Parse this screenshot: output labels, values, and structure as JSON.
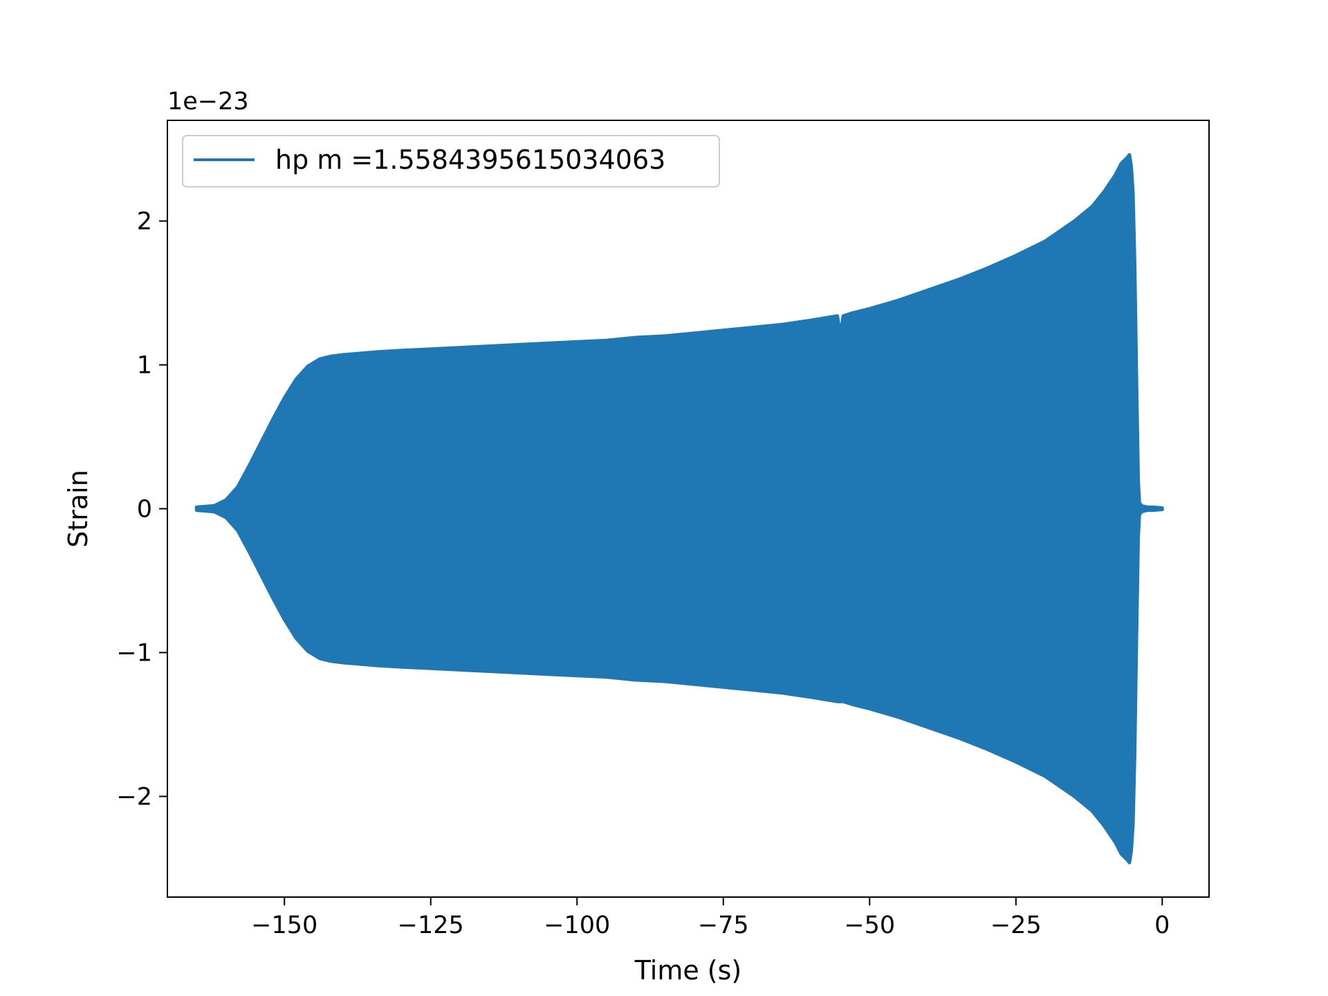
{
  "chart_data": {
    "type": "area",
    "title": "",
    "xlabel": "Time (s)",
    "ylabel": "Strain",
    "offset_text": "1e−23",
    "xlim": [
      -170,
      8
    ],
    "ylim": [
      -2.7,
      2.7
    ],
    "xticks": [
      -150,
      -125,
      -100,
      -75,
      -50,
      -25,
      0
    ],
    "xtick_labels": [
      "−150",
      "−125",
      "−100",
      "−75",
      "−50",
      "−25",
      "0"
    ],
    "yticks": [
      -2,
      -1,
      0,
      1,
      2
    ],
    "ytick_labels": [
      "−2",
      "−1",
      "0",
      "1",
      "2"
    ],
    "grid": false,
    "legend_position": "top-left",
    "series": [
      {
        "name": "hp m =1.5584395615034063",
        "color": "#1f77b4",
        "description_kind": "oscillating strain envelope (upper / lower)",
        "x": [
          -165,
          -162,
          -160,
          -158,
          -156,
          -154,
          -152,
          -150,
          -148,
          -146,
          -144,
          -142,
          -140,
          -137,
          -134,
          -130,
          -125,
          -120,
          -115,
          -110,
          -105,
          -100,
          -95,
          -90,
          -85,
          -80,
          -75,
          -70,
          -65,
          -60,
          -57,
          -55.5,
          -55,
          -54.5,
          -53,
          -50,
          -45,
          -40,
          -35,
          -30,
          -25,
          -20,
          -15,
          -12,
          -10,
          -8,
          -7,
          -6,
          -5.6,
          -5.3,
          -5.0,
          -4.7,
          -4.4,
          -4.1,
          -3.9,
          -3.5,
          -2.5,
          -1.5,
          0
        ],
        "upper": [
          0.01,
          0.02,
          0.06,
          0.15,
          0.3,
          0.46,
          0.62,
          0.77,
          0.9,
          0.99,
          1.04,
          1.06,
          1.07,
          1.08,
          1.09,
          1.1,
          1.11,
          1.12,
          1.13,
          1.14,
          1.15,
          1.16,
          1.17,
          1.19,
          1.2,
          1.22,
          1.24,
          1.26,
          1.28,
          1.31,
          1.33,
          1.34,
          1.2,
          1.34,
          1.36,
          1.39,
          1.45,
          1.52,
          1.59,
          1.67,
          1.76,
          1.86,
          2.0,
          2.1,
          2.2,
          2.32,
          2.4,
          2.44,
          2.46,
          2.38,
          2.2,
          1.7,
          0.9,
          0.2,
          0.04,
          0.02,
          0.01,
          0.01,
          0.005
        ],
        "lower": [
          -0.01,
          -0.02,
          -0.06,
          -0.15,
          -0.3,
          -0.46,
          -0.62,
          -0.77,
          -0.9,
          -0.99,
          -1.04,
          -1.06,
          -1.07,
          -1.08,
          -1.09,
          -1.1,
          -1.11,
          -1.12,
          -1.13,
          -1.14,
          -1.15,
          -1.16,
          -1.17,
          -1.19,
          -1.2,
          -1.22,
          -1.24,
          -1.26,
          -1.28,
          -1.31,
          -1.33,
          -1.34,
          -1.34,
          -1.34,
          -1.36,
          -1.39,
          -1.45,
          -1.52,
          -1.59,
          -1.67,
          -1.76,
          -1.86,
          -2.0,
          -2.1,
          -2.2,
          -2.32,
          -2.4,
          -2.44,
          -2.46,
          -2.38,
          -2.2,
          -1.7,
          -0.9,
          -0.2,
          -0.04,
          -0.02,
          -0.01,
          -0.01,
          -0.005
        ]
      }
    ]
  }
}
